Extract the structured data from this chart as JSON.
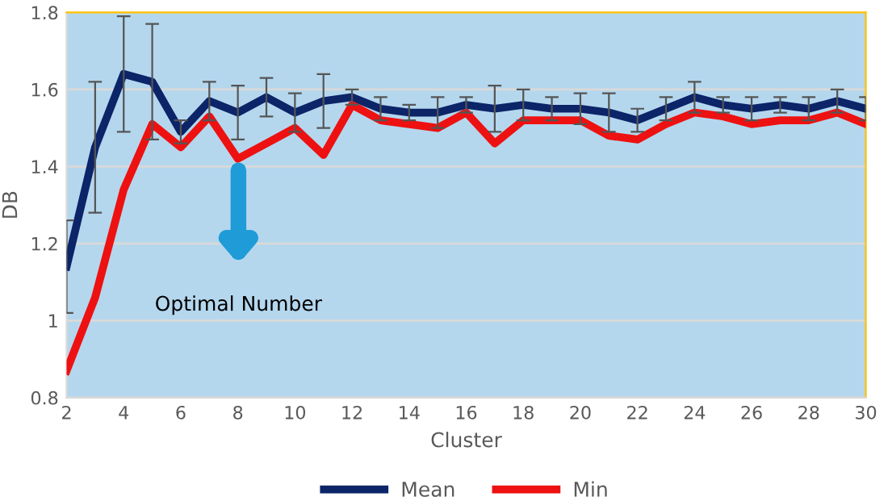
{
  "chart_data": {
    "type": "line",
    "xlabel": "Cluster",
    "ylabel": "DB",
    "x": [
      2,
      3,
      4,
      5,
      6,
      7,
      8,
      9,
      10,
      11,
      12,
      13,
      14,
      15,
      16,
      17,
      18,
      19,
      20,
      21,
      22,
      23,
      24,
      25,
      26,
      27,
      28,
      29,
      30
    ],
    "xlim": [
      2,
      30
    ],
    "xticks": [
      2,
      4,
      6,
      8,
      10,
      12,
      14,
      16,
      18,
      20,
      22,
      24,
      26,
      28,
      30
    ],
    "ylim": [
      0.8,
      1.8
    ],
    "yticks": [
      0.8,
      1,
      1.2,
      1.4,
      1.6,
      1.8
    ],
    "grid": "y",
    "legend": "bottom",
    "marker": "none",
    "line_style": "solid",
    "series": [
      {
        "name": "Mean",
        "color": "#0c2468",
        "values": [
          1.14,
          1.45,
          1.64,
          1.62,
          1.49,
          1.57,
          1.54,
          1.58,
          1.54,
          1.57,
          1.58,
          1.55,
          1.54,
          1.54,
          1.56,
          1.55,
          1.56,
          1.55,
          1.55,
          1.54,
          1.52,
          1.55,
          1.58,
          1.56,
          1.55,
          1.56,
          1.55,
          1.57,
          1.55
        ],
        "errors": [
          0.12,
          0.17,
          0.15,
          0.15,
          0.03,
          0.05,
          0.07,
          0.05,
          0.05,
          0.07,
          0.02,
          0.03,
          0.02,
          0.04,
          0.02,
          0.06,
          0.04,
          0.03,
          0.04,
          0.05,
          0.03,
          0.03,
          0.04,
          0.02,
          0.03,
          0.02,
          0.03,
          0.03,
          0.03
        ]
      },
      {
        "name": "Min",
        "color": "#ee1111",
        "values": [
          0.87,
          1.06,
          1.34,
          1.51,
          1.45,
          1.53,
          1.42,
          1.46,
          1.5,
          1.43,
          1.56,
          1.52,
          1.51,
          1.5,
          1.54,
          1.46,
          1.52,
          1.52,
          1.52,
          1.48,
          1.47,
          1.51,
          1.54,
          1.53,
          1.51,
          1.52,
          1.52,
          1.54,
          1.51
        ]
      }
    ],
    "annotations": [
      "Optimal Number"
    ]
  }
}
